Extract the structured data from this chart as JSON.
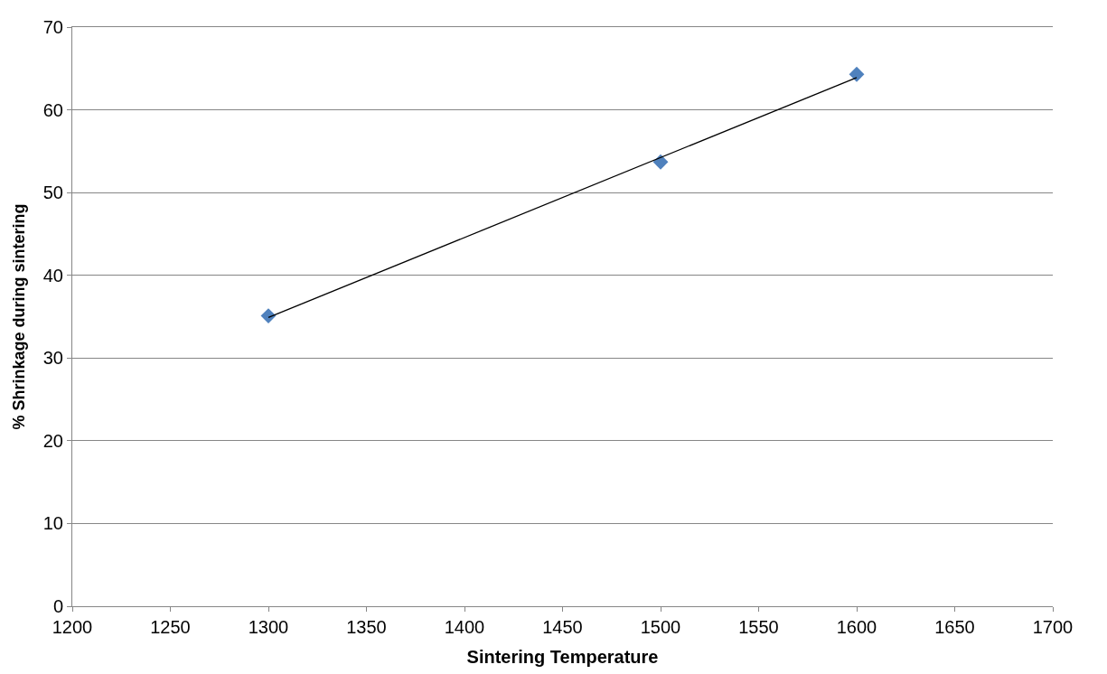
{
  "chart_data": {
    "type": "scatter",
    "xlabel": "Sintering Temperature",
    "ylabel": "% Shrinkage during sintering",
    "series": [
      {
        "color": "#4f81bd",
        "marker": "diamond",
        "x": [
          1300,
          1500,
          1600
        ],
        "values": [
          35.1,
          53.7,
          64.3
        ]
      },
      {
        "type": "line",
        "color": "#000000",
        "marker": "none",
        "x": [
          1300,
          1600
        ],
        "values": [
          34.9,
          63.9
        ]
      }
    ],
    "xlim": [
      1200,
      1700
    ],
    "xticks": [
      1200,
      1250,
      1300,
      1350,
      1400,
      1450,
      1500,
      1550,
      1600,
      1650,
      1700
    ],
    "ylim": [
      0,
      70
    ],
    "yticks": [
      0,
      10,
      20,
      30,
      40,
      50,
      60,
      70
    ],
    "grid": "y"
  }
}
